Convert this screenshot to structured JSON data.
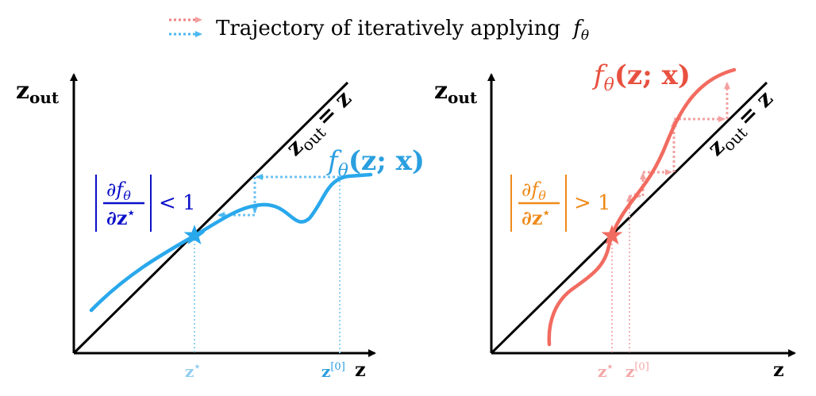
{
  "legend": {
    "text": "Trajectory of iteratively applying",
    "func": "f",
    "func_sub": "θ",
    "arrow_colors": [
      "#f08080",
      "#4db8f0"
    ]
  },
  "colors": {
    "axis": "#000000",
    "blue_curve": "#29a8ec",
    "blue_label": "#2a9fe0",
    "blue_dark": "#0b10c8",
    "red_curve": "#f26b60",
    "red_label": "#e8503f",
    "red_traj": "#f3a0a0",
    "orange": "#ee8a1a"
  },
  "left_panel": {
    "y_axis_label": "z",
    "y_axis_sub": "out",
    "x_axis_label": "z",
    "identity_label": "z",
    "identity_sub": "out",
    "identity_eq": "= z",
    "curve_label_f": "f",
    "curve_label_sub": "θ",
    "curve_label_args": "(z; x)",
    "deriv_num": "∂f",
    "deriv_num_sub": "θ",
    "deriv_den": "∂z",
    "deriv_den_sup": "⋆",
    "deriv_rel": "< 1",
    "tick_star": "z",
    "tick_star_sup": "⋆",
    "tick_z0": "z",
    "tick_z0_sup": "[0]"
  },
  "right_panel": {
    "y_axis_label": "z",
    "y_axis_sub": "out",
    "x_axis_label": "z",
    "identity_label": "z",
    "identity_sub": "out",
    "identity_eq": "= z",
    "curve_label_f": "f",
    "curve_label_sub": "θ",
    "curve_label_args": "(z; x)",
    "deriv_num": "∂f",
    "deriv_num_sub": "θ",
    "deriv_den": "∂z",
    "deriv_den_sup": "⋆",
    "deriv_rel": "> 1",
    "tick_star": "z",
    "tick_star_sup": "⋆",
    "tick_z0": "z",
    "tick_z0_sup": "[0]"
  }
}
